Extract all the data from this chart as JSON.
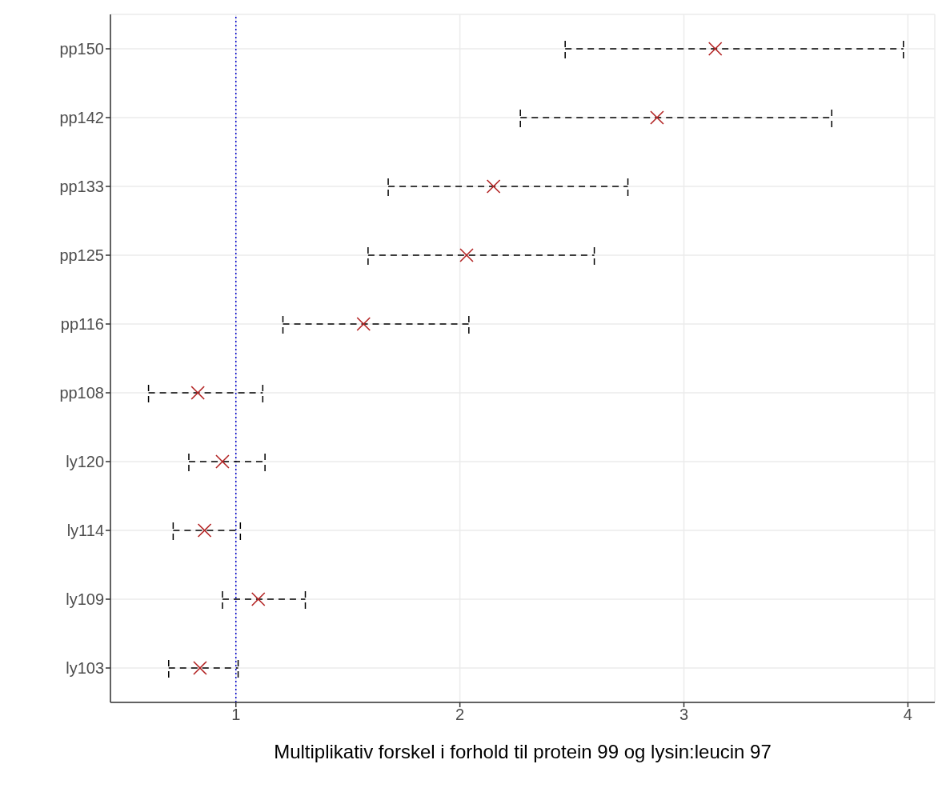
{
  "chart_data": {
    "type": "scatter",
    "orientation": "horizontal",
    "xlabel": "Multiplikativ forskel i forhold til protein 99 og lysin:leucin 97",
    "categories": [
      "pp150",
      "pp142",
      "pp133",
      "pp125",
      "pp116",
      "pp108",
      "ly120",
      "ly114",
      "ly109",
      "ly103"
    ],
    "color": "#b22222",
    "values": [
      3.14,
      2.88,
      2.15,
      2.03,
      1.57,
      0.83,
      0.94,
      0.86,
      1.1,
      0.84
    ],
    "errors": [
      [
        2.47,
        3.98
      ],
      [
        2.27,
        3.66
      ],
      [
        1.68,
        2.75
      ],
      [
        1.59,
        2.6
      ],
      [
        1.21,
        2.04
      ],
      [
        0.61,
        1.12
      ],
      [
        0.79,
        1.13
      ],
      [
        0.72,
        1.02
      ],
      [
        0.94,
        1.31
      ],
      [
        0.7,
        1.01
      ]
    ],
    "xlim": [
      0.44,
      4.12
    ],
    "xticks": [
      1,
      2,
      3,
      4
    ],
    "grid": true,
    "marker": "cross",
    "ref_lines": [
      {
        "axis": "x",
        "value": 1,
        "color": "#0000cd",
        "line_style": "dotted"
      }
    ]
  }
}
